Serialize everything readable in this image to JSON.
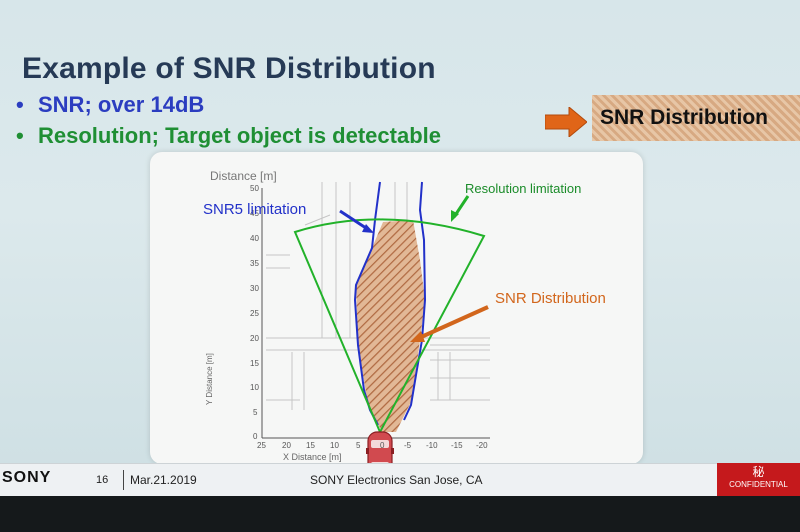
{
  "slide": {
    "title": "Example of SNR Distribution",
    "bullets": [
      {
        "dot": "•",
        "text": "SNR; over 14dB",
        "color": "#2b3dc0"
      },
      {
        "dot": "•",
        "text": "Resolution; Target object is detectable",
        "color": "#1f8f34"
      }
    ],
    "callout_label": "SNR Distribution",
    "callout_arrow_color": "#e06518"
  },
  "figure": {
    "top_axis_label": "Distance [m]",
    "x_axis_label": "X Distance [m]",
    "y_axis_label": "Y Distance [m]",
    "x_ticks": [
      "25",
      "20",
      "15",
      "10",
      "5",
      "0",
      "-5",
      "-10",
      "-15",
      "-20"
    ],
    "y_ticks": [
      "50",
      "45",
      "40",
      "35",
      "30",
      "25",
      "20",
      "15",
      "10",
      "5",
      "0"
    ],
    "annotations": {
      "snr5": "SNR5 limitation",
      "resolution": "Resolution limitation",
      "distribution": "SNR Distribution"
    },
    "colors": {
      "snr5": "#2231c9",
      "resolution": "#22b22a",
      "distribution_fill": "#c9875c",
      "distribution_arrow": "#d2661c"
    }
  },
  "footer": {
    "brand": "SONY",
    "page_number": "16",
    "date": "Mar.21.2019",
    "location": "SONY Electronics San Jose, CA",
    "confidential_kanji": "秘",
    "confidential_label": "CONFIDENTIAL"
  }
}
